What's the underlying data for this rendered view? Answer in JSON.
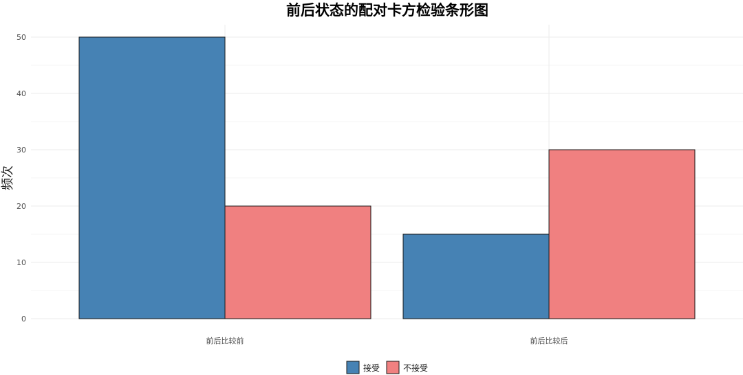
{
  "chart_data": {
    "type": "bar",
    "title": "前后状态的配对卡方检验条形图",
    "xlabel": "",
    "ylabel": "频次",
    "categories": [
      "前后比较前",
      "前后比较后"
    ],
    "series": [
      {
        "name": "接受",
        "values": [
          50,
          15
        ],
        "color": "#4682b4"
      },
      {
        "name": "不接受",
        "values": [
          20,
          30
        ],
        "color": "#f08080"
      }
    ],
    "ylim": [
      0,
      52.5
    ],
    "yticks": [
      0,
      10,
      20,
      30,
      40,
      50
    ],
    "grid": true,
    "legend_position": "bottom"
  }
}
